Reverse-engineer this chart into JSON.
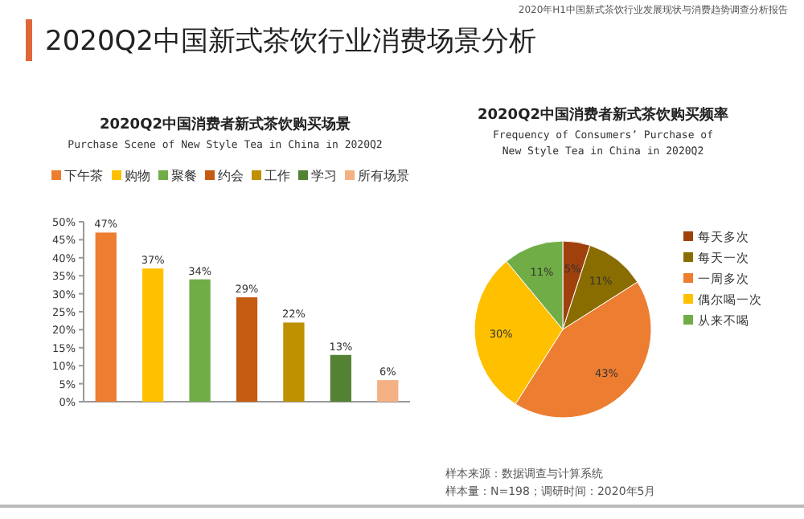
{
  "chart_data": [
    {
      "type": "other",
      "title": "2020Q2中国新式茶饮行业消费场景分析",
      "annotations": [
        "2020年H1中国新式茶饮行业发展现状与消费趋势调查分析报告",
        "样本来源：数据调查与计算系统",
        "样本量：N=198；调研时间：2020年5月"
      ]
    },
    {
      "type": "bar",
      "title": "2020Q2中国消费者新式茶饮购买场景",
      "subtitle": "Purchase Scene of New Style Tea in China in 2020Q2",
      "categories": [
        null
      ],
      "legend": "top",
      "ylim": [
        0,
        50
      ],
      "yticks": [
        {
          "value": 0,
          "label": "0%"
        },
        {
          "value": 5,
          "label": "5%"
        },
        {
          "value": 10,
          "label": "10%"
        },
        {
          "value": 15,
          "label": "15%"
        },
        {
          "value": 20,
          "label": "20%"
        },
        {
          "value": 25,
          "label": "25%"
        },
        {
          "value": 30,
          "label": "30%"
        },
        {
          "value": 35,
          "label": "35%"
        },
        {
          "value": 40,
          "label": "40%"
        },
        {
          "value": 45,
          "label": "45%"
        },
        {
          "value": 50,
          "label": "50%"
        }
      ],
      "series": [
        {
          "name": "下午茶",
          "color": "#ed7d31",
          "values": [
            47
          ],
          "value_labels": [
            "47%"
          ]
        },
        {
          "name": "购物",
          "color": "#ffc000",
          "values": [
            37
          ],
          "value_labels": [
            "37%"
          ]
        },
        {
          "name": "聚餐",
          "color": "#70ad47",
          "values": [
            34
          ],
          "value_labels": [
            "34%"
          ]
        },
        {
          "name": "约会",
          "color": "#c55a11",
          "values": [
            29
          ],
          "value_labels": [
            "29%"
          ]
        },
        {
          "name": "工作",
          "color": "#bf9000",
          "values": [
            22
          ],
          "value_labels": [
            "22%"
          ]
        },
        {
          "name": "学习",
          "color": "#548235",
          "values": [
            13
          ],
          "value_labels": [
            "13%"
          ]
        },
        {
          "name": "所有场景",
          "color": "#f4b183",
          "values": [
            6
          ],
          "value_labels": [
            "6%"
          ]
        }
      ]
    },
    {
      "type": "pie",
      "title": "2020Q2中国消费者新式茶饮购买频率",
      "subtitle": "Frequency of Consumers’ Purchase of New Style Tea in China in 2020Q2",
      "legend": "right",
      "categories": [
        "每天多次",
        "每天一次",
        "一周多次",
        "偶尔喝一次",
        "从来不喝"
      ],
      "values": [
        5,
        11,
        43,
        30,
        11
      ],
      "value_labels": [
        "5%",
        "11%",
        "43%",
        "30%",
        "11%"
      ],
      "colors": [
        "#a0410d",
        "#8a6d00",
        "#ed7d31",
        "#ffc000",
        "#70ad47"
      ]
    }
  ]
}
